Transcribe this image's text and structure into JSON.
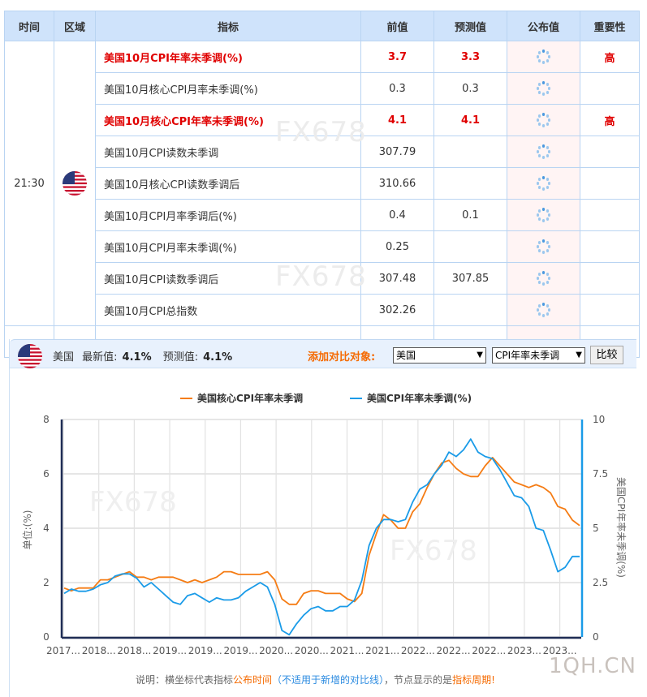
{
  "table": {
    "headers": [
      "时间",
      "区域",
      "指标",
      "前值",
      "预测值",
      "公布值",
      "重要性"
    ],
    "time": "21:30",
    "region": "美国",
    "region_icon": "us-flag-icon",
    "published_icon": "loading-spinner-icon",
    "rows": [
      {
        "name": "美国10月CPI年率未季调(%)",
        "previous": "3.7",
        "forecast": "3.3",
        "actual": "",
        "importance": "高",
        "highlight": true
      },
      {
        "name": "美国10月核心CPI月率未季调(%)",
        "previous": "0.3",
        "forecast": "0.3",
        "actual": "",
        "importance": "",
        "highlight": false
      },
      {
        "name": "美国10月核心CPI年率未季调(%)",
        "previous": "4.1",
        "forecast": "4.1",
        "actual": "",
        "importance": "高",
        "highlight": true
      },
      {
        "name": "美国10月CPI读数未季调",
        "previous": "307.79",
        "forecast": "",
        "actual": "",
        "importance": "",
        "highlight": false
      },
      {
        "name": "美国10月核心CPI读数季调后",
        "previous": "310.66",
        "forecast": "",
        "actual": "",
        "importance": "",
        "highlight": false
      },
      {
        "name": "美国10月CPI月率季调后(%)",
        "previous": "0.4",
        "forecast": "0.1",
        "actual": "",
        "importance": "",
        "highlight": false
      },
      {
        "name": "美国10月CPI月率未季调(%)",
        "previous": "0.25",
        "forecast": "",
        "actual": "",
        "importance": "",
        "highlight": false
      },
      {
        "name": "美国10月CPI读数季调后",
        "previous": "307.48",
        "forecast": "307.85",
        "actual": "",
        "importance": "",
        "highlight": false
      },
      {
        "name": "美国10月CPI总指数",
        "previous": "302.26",
        "forecast": "",
        "actual": "",
        "importance": "",
        "highlight": false
      }
    ],
    "watermark": "FX678"
  },
  "chart_panel": {
    "country": "美国",
    "latest_label": "最新值:",
    "latest_value": "4.1%",
    "forecast_label": "预测值:",
    "forecast_value": "4.1%",
    "compare_label": "添加对比对象:",
    "compare_country_select": "美国",
    "compare_indicator_select": "CPI年率未季调",
    "compare_button": "比较",
    "note": {
      "prefix": "说明：横坐标代表指标",
      "part1": "公布时间",
      "part2": "（不适用于新增的对比线）",
      "part3": "，节点显示的是",
      "part4": "指标周期!"
    },
    "watermark": "FX678"
  },
  "brand_watermark": "1QH.CN",
  "colors": {
    "header_bg": "#cfe3fb",
    "border": "#b9d4f2",
    "highlight_red": "#e00000",
    "published_bg": "#fff4f4",
    "orange_series": "#f57c14",
    "blue_series": "#1a9be8",
    "compare_orange": "#f56a00"
  },
  "chart_data": {
    "type": "line",
    "title": "",
    "legend_position": "top",
    "grid": true,
    "x_tick_labels": [
      "2017...",
      "2018...",
      "2018...",
      "2019...",
      "2019...",
      "2019...",
      "2020...",
      "2020...",
      "2021...",
      "2021...",
      "2022...",
      "2022...",
      "2022...",
      "2023...",
      "2023..."
    ],
    "left_axis": {
      "label": "单位:(%)",
      "range": [
        0,
        8
      ],
      "ticks": [
        0,
        2,
        4,
        6,
        8
      ]
    },
    "right_axis": {
      "label": "美国CPI年率未季调(%)",
      "range": [
        0,
        10
      ],
      "ticks": [
        0,
        2.5,
        5,
        7.5,
        10
      ]
    },
    "series": [
      {
        "name": "美国核心CPI年率未季调",
        "axis": "left",
        "color": "#f57c14",
        "values": [
          1.8,
          1.7,
          1.8,
          1.8,
          1.8,
          2.1,
          2.1,
          2.2,
          2.3,
          2.4,
          2.2,
          2.2,
          2.1,
          2.2,
          2.2,
          2.2,
          2.1,
          2.0,
          2.1,
          2.0,
          2.1,
          2.2,
          2.4,
          2.4,
          2.3,
          2.3,
          2.3,
          2.3,
          2.4,
          2.1,
          1.4,
          1.2,
          1.2,
          1.6,
          1.7,
          1.7,
          1.6,
          1.6,
          1.6,
          1.4,
          1.3,
          1.6,
          3.0,
          3.8,
          4.5,
          4.3,
          4.0,
          4.0,
          4.6,
          4.9,
          5.5,
          6.0,
          6.4,
          6.5,
          6.2,
          6.0,
          5.9,
          5.9,
          6.3,
          6.6,
          6.3,
          6.0,
          5.7,
          5.6,
          5.5,
          5.6,
          5.5,
          5.3,
          4.8,
          4.7,
          4.3,
          4.1
        ]
      },
      {
        "name": "美国CPI年率未季调(%)",
        "axis": "right",
        "color": "#1a9be8",
        "values": [
          2.0,
          2.2,
          2.1,
          2.1,
          2.2,
          2.4,
          2.5,
          2.8,
          2.9,
          2.9,
          2.7,
          2.3,
          2.5,
          2.2,
          1.9,
          1.6,
          1.5,
          1.9,
          2.0,
          1.8,
          1.6,
          1.8,
          1.7,
          1.7,
          1.8,
          2.1,
          2.3,
          2.5,
          2.3,
          1.5,
          0.3,
          0.1,
          0.6,
          1.0,
          1.3,
          1.4,
          1.2,
          1.2,
          1.4,
          1.4,
          1.7,
          2.6,
          4.2,
          5.0,
          5.4,
          5.4,
          5.3,
          5.4,
          6.2,
          6.8,
          7.0,
          7.5,
          7.9,
          8.5,
          8.3,
          8.6,
          9.1,
          8.5,
          8.3,
          8.2,
          7.7,
          7.1,
          6.5,
          6.4,
          6.0,
          5.0,
          4.9,
          4.0,
          3.0,
          3.2,
          3.7,
          3.7
        ]
      }
    ]
  }
}
